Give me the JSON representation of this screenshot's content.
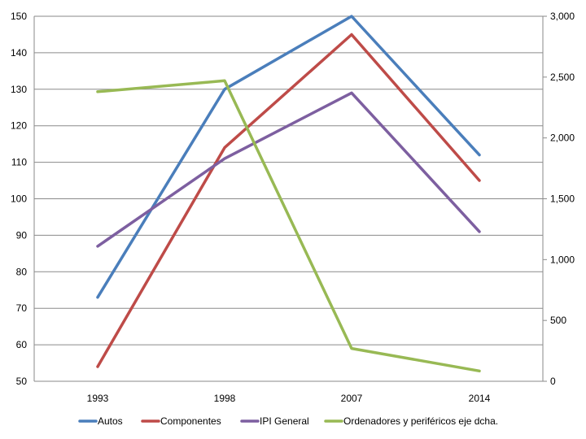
{
  "chart_data": {
    "type": "line",
    "title": "",
    "xlabel": "",
    "ylabel": "",
    "y2label": "",
    "categories": [
      "1993",
      "1998",
      "2007",
      "2014"
    ],
    "ylim": [
      50,
      150
    ],
    "y_ticks": [
      "50",
      "60",
      "70",
      "80",
      "90",
      "100",
      "110",
      "120",
      "130",
      "140",
      "150"
    ],
    "y2lim": [
      0,
      3000
    ],
    "y2_ticks": [
      "0",
      "500",
      "1,000",
      "1,500",
      "2,000",
      "2,500",
      "3,000"
    ],
    "grid": "horizontal",
    "legend_position": "bottom",
    "series": [
      {
        "name": "Autos",
        "axis": "left",
        "color": "#4a7ebb",
        "values": [
          73,
          130,
          150,
          112
        ]
      },
      {
        "name": "Componentes",
        "axis": "left",
        "color": "#be4b48",
        "values": [
          54,
          114,
          145,
          105
        ]
      },
      {
        "name": "IPI General",
        "axis": "left",
        "color": "#7d5fa0",
        "values": [
          87,
          111,
          129,
          91
        ]
      },
      {
        "name": "Ordenadores y periféricos eje dcha.",
        "axis": "right",
        "color": "#98b954",
        "values": [
          2380,
          2470,
          270,
          85
        ]
      }
    ]
  }
}
